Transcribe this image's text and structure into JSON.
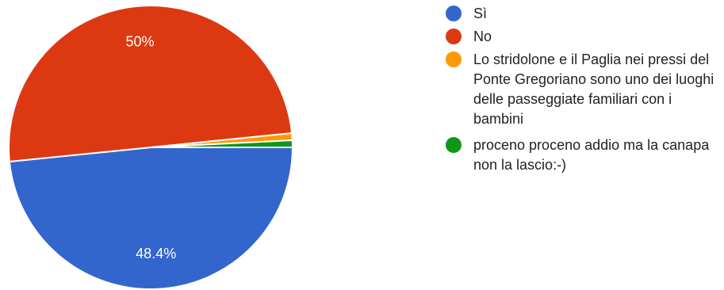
{
  "chart_data": {
    "type": "pie",
    "title": "",
    "slices": [
      {
        "label": "Sì",
        "percent": 48.4,
        "color": "#3366cc",
        "data_label": "48.4%"
      },
      {
        "label": "No",
        "percent": 50,
        "color": "#dc3912",
        "data_label": "50%"
      },
      {
        "label": "Lo stridolone e il Paglia nei pressi del Ponte Gregoriano sono uno dei luoghi delle passeggiate familiari con i bambini",
        "percent": 0.8,
        "color": "#ff9900",
        "data_label": ""
      },
      {
        "label": "proceno proceno addio ma la canapa non la lascio:-)",
        "percent": 0.8,
        "color": "#109618",
        "data_label": ""
      }
    ],
    "legend_position": "right"
  }
}
